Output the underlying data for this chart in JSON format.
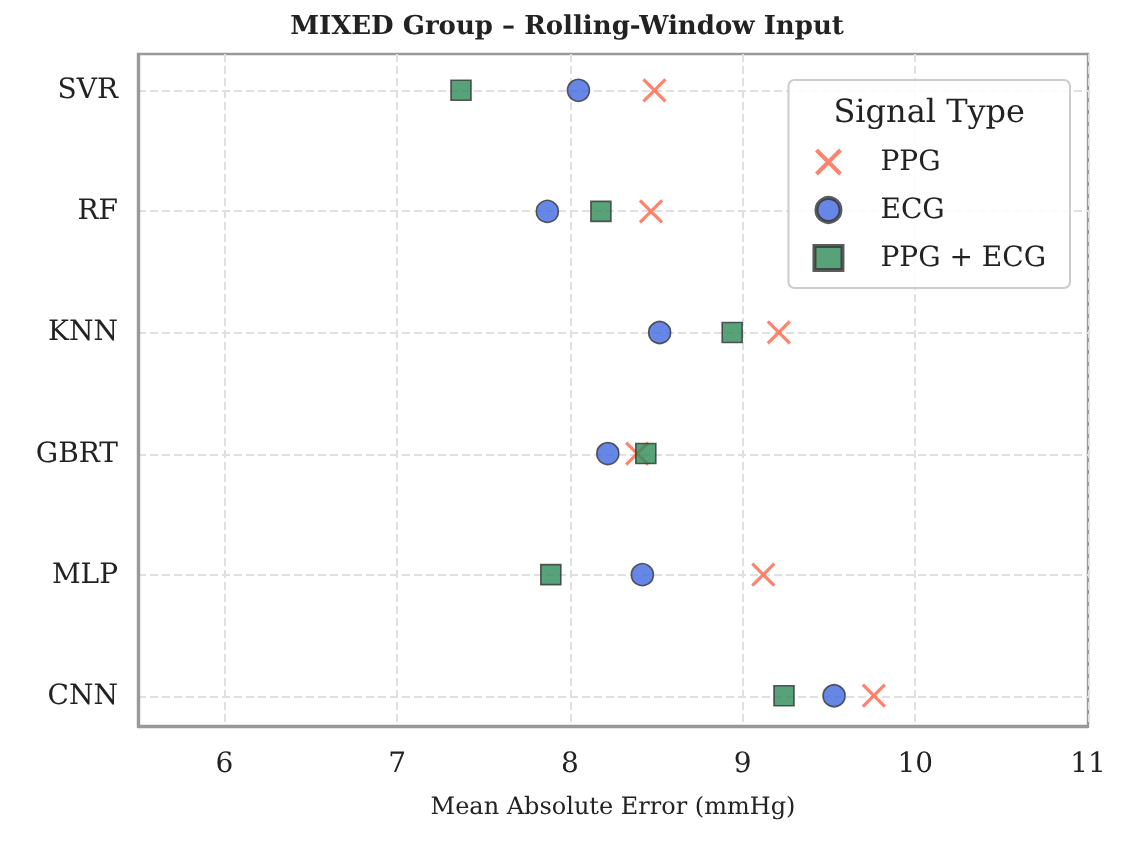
{
  "chart_data": {
    "type": "scatter",
    "title": "MIXED Group – Rolling-Window Input",
    "xlabel": "Mean Absolute Error (mmHg)",
    "legend_title": "Signal Type",
    "orientation": "horizontal",
    "categories": [
      "SVR",
      "RF",
      "KNN",
      "GBRT",
      "MLP",
      "CNN"
    ],
    "series": [
      {
        "name": "PPG",
        "color": "#ff6347",
        "marker": "cross",
        "values": [
          8.49,
          8.47,
          9.21,
          8.39,
          9.12,
          9.76
        ]
      },
      {
        "name": "ECG",
        "color": "#4169e1",
        "marker": "circle",
        "values": [
          8.05,
          7.87,
          8.52,
          8.22,
          8.42,
          9.53
        ]
      },
      {
        "name": "PPG + ECG",
        "color": "#2e8b57",
        "marker": "square",
        "values": [
          7.37,
          8.18,
          8.94,
          8.44,
          7.89,
          9.24
        ]
      }
    ],
    "xlim": [
      5.5,
      11
    ],
    "xticks": [
      6,
      7,
      8,
      9,
      10,
      11
    ],
    "grid": true,
    "legend": "top right"
  }
}
